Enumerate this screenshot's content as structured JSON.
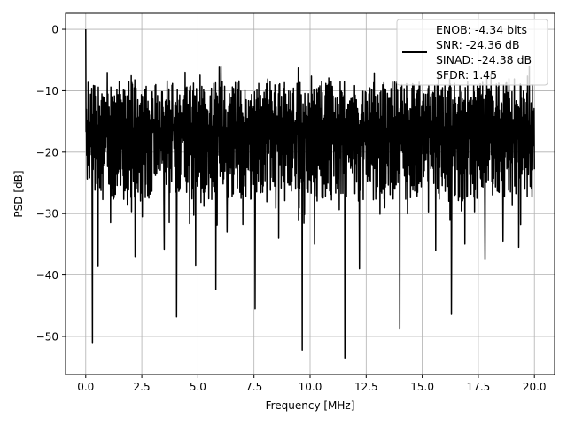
{
  "chart_data": {
    "type": "line",
    "xlabel": "Frequency [MHz]",
    "ylabel": "PSD [dB]",
    "xlim": [
      -0.9,
      20.9
    ],
    "ylim": [
      -56.2,
      2.6
    ],
    "xticks": [
      0.0,
      2.5,
      5.0,
      7.5,
      10.0,
      12.5,
      15.0,
      17.5,
      20.0
    ],
    "xtick_labels": [
      "0.0",
      "2.5",
      "5.0",
      "7.5",
      "10.0",
      "12.5",
      "15.0",
      "17.5",
      "20.0"
    ],
    "yticks": [
      0,
      -10,
      -20,
      -30,
      -40,
      -50
    ],
    "ytick_labels": [
      "0",
      "−10",
      "−20",
      "−30",
      "−40",
      "−50"
    ],
    "grid": true,
    "legend_position": "top-right",
    "series": [
      {
        "name": "ENOB: -4.34 bits\nSNR: -24.36 dB\nSINAD: -24.38 dB\nSFDR: 1.45",
        "color": "#000000",
        "x_range": [
          0.0,
          20.0
        ],
        "noise_band_db": [
          -30,
          -7
        ],
        "start_value_db": 0.0,
        "notable_dips": [
          {
            "x": 0.3,
            "y": -51.0
          },
          {
            "x": 0.55,
            "y": -38.5
          },
          {
            "x": 2.2,
            "y": -37.0
          },
          {
            "x": 3.5,
            "y": -35.8
          },
          {
            "x": 4.05,
            "y": -46.8
          },
          {
            "x": 4.9,
            "y": -38.4
          },
          {
            "x": 5.8,
            "y": -42.4
          },
          {
            "x": 6.3,
            "y": -33.0
          },
          {
            "x": 7.55,
            "y": -45.5
          },
          {
            "x": 8.6,
            "y": -34.0
          },
          {
            "x": 9.65,
            "y": -52.2
          },
          {
            "x": 10.2,
            "y": -35.0
          },
          {
            "x": 11.55,
            "y": -53.5
          },
          {
            "x": 12.2,
            "y": -39.0
          },
          {
            "x": 14.0,
            "y": -48.8
          },
          {
            "x": 15.6,
            "y": -36.0
          },
          {
            "x": 16.3,
            "y": -46.4
          },
          {
            "x": 16.9,
            "y": -35.0
          },
          {
            "x": 17.8,
            "y": -37.5
          },
          {
            "x": 18.6,
            "y": -34.5
          },
          {
            "x": 19.3,
            "y": -35.5
          }
        ]
      }
    ]
  }
}
